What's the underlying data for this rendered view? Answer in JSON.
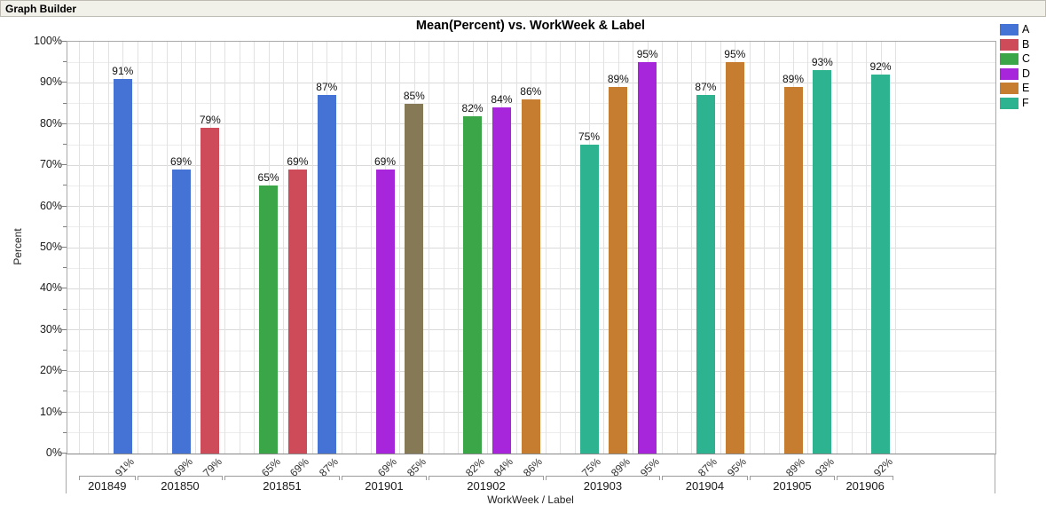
{
  "header": {
    "title": "Graph Builder"
  },
  "chart_data": {
    "type": "bar",
    "title": "Mean(Percent) vs. WorkWeek & Label",
    "xlabel": "WorkWeek / Label",
    "ylabel": "Percent",
    "ylim": [
      0,
      100
    ],
    "ytick_interval": 10,
    "minor_grid_interval": 5,
    "grid": true,
    "ytick_labels": [
      "0%",
      "10%",
      "20%",
      "30%",
      "40%",
      "50%",
      "60%",
      "70%",
      "80%",
      "90%",
      "100%"
    ],
    "legend": {
      "position": "top-right",
      "entries": [
        {
          "label": "A",
          "color": "#4472D5"
        },
        {
          "label": "B",
          "color": "#CE4B59"
        },
        {
          "label": "C",
          "color": "#3AA647"
        },
        {
          "label": "D",
          "color": "#A726DC"
        },
        {
          "label": "E",
          "color": "#C77D2F"
        },
        {
          "label": "F",
          "color": "#2DB390"
        }
      ]
    },
    "groups": [
      {
        "week": "201849",
        "bars": [
          {
            "series": "A",
            "value": 91,
            "label": "91%",
            "color": "#4472D5"
          }
        ]
      },
      {
        "week": "201850",
        "bars": [
          {
            "series": "A",
            "value": 69,
            "label": "69%",
            "color": "#4472D5"
          },
          {
            "series": "B",
            "value": 79,
            "label": "79%",
            "color": "#CE4B59"
          }
        ]
      },
      {
        "week": "201851",
        "bars": [
          {
            "series": "C",
            "value": 65,
            "label": "65%",
            "color": "#3AA647"
          },
          {
            "series": "B",
            "value": 69,
            "label": "69%",
            "color": "#CE4B59"
          },
          {
            "series": "A",
            "value": 87,
            "label": "87%",
            "color": "#4472D5"
          }
        ]
      },
      {
        "week": "201901",
        "bars": [
          {
            "series": "D",
            "value": 69,
            "label": "69%",
            "color": "#A726DC"
          },
          {
            "series": "",
            "value": 85,
            "label": "85%",
            "color": "#857A55"
          }
        ]
      },
      {
        "week": "201902",
        "bars": [
          {
            "series": "C",
            "value": 82,
            "label": "82%",
            "color": "#3AA647"
          },
          {
            "series": "D",
            "value": 84,
            "label": "84%",
            "color": "#A726DC"
          },
          {
            "series": "E",
            "value": 86,
            "label": "86%",
            "color": "#C77D2F"
          }
        ]
      },
      {
        "week": "201903",
        "bars": [
          {
            "series": "F",
            "value": 75,
            "label": "75%",
            "color": "#2DB390"
          },
          {
            "series": "E",
            "value": 89,
            "label": "89%",
            "color": "#C77D2F"
          },
          {
            "series": "D",
            "value": 95,
            "label": "95%",
            "color": "#A726DC"
          }
        ]
      },
      {
        "week": "201904",
        "bars": [
          {
            "series": "F",
            "value": 87,
            "label": "87%",
            "color": "#2DB390"
          },
          {
            "series": "E",
            "value": 95,
            "label": "95%",
            "color": "#C77D2F"
          }
        ]
      },
      {
        "week": "201905",
        "bars": [
          {
            "series": "E",
            "value": 89,
            "label": "89%",
            "color": "#C77D2F"
          },
          {
            "series": "F",
            "value": 93,
            "label": "93%",
            "color": "#2DB390"
          }
        ]
      },
      {
        "week": "201906",
        "bars": [
          {
            "series": "F",
            "value": 92,
            "label": "92%",
            "color": "#2DB390"
          }
        ]
      }
    ]
  }
}
